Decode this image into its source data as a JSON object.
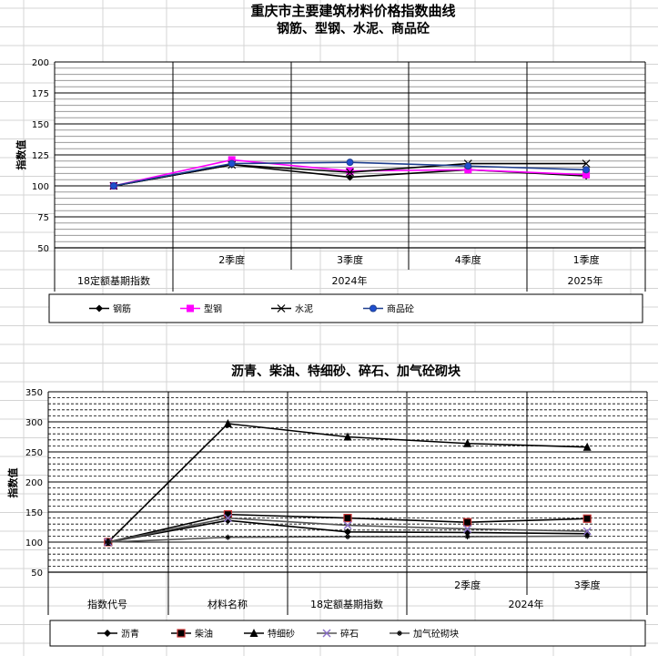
{
  "chart_data": [
    {
      "type": "line",
      "title": "重庆市主要建筑材料价格指数曲线",
      "subtitle": "钢筋、型钢、水泥、商品砼",
      "ylabel": "指数值",
      "ylim": [
        50,
        200
      ],
      "yticks": [
        50,
        75,
        100,
        125,
        150,
        175,
        200
      ],
      "grid": true,
      "legend_position": "bottom",
      "categories": [
        "18定额基期指数",
        "2024年 2季度",
        "2024年 3季度",
        "2024年 4季度",
        "2025年 1季度"
      ],
      "x_labels_top": [
        "",
        "2季度",
        "3季度",
        "4季度",
        "1季度"
      ],
      "x_labels_bottom": [
        "18定额基期指数",
        "2024年",
        "2025年"
      ],
      "series": [
        {
          "name": "钢筋",
          "values": [
            100,
            117,
            107,
            113,
            108
          ],
          "color": "#000000",
          "marker": "diamond"
        },
        {
          "name": "型钢",
          "values": [
            100,
            121,
            112,
            113,
            109
          ],
          "color": "#ff00ff",
          "marker": "square"
        },
        {
          "name": "水泥",
          "values": [
            100,
            117,
            111,
            118,
            118
          ],
          "color": "#000000",
          "marker": "x"
        },
        {
          "name": "商品砼",
          "values": [
            100,
            118,
            119,
            116,
            113
          ],
          "color": "#1f3f8f",
          "marker": "circle"
        }
      ]
    },
    {
      "type": "line",
      "title": "沥青、柴油、特细砂、碎石、加气砼砌块",
      "ylabel": "指数值",
      "ylim": [
        50,
        350
      ],
      "yticks": [
        50,
        100,
        150,
        200,
        250,
        300,
        350
      ],
      "grid": true,
      "legend_position": "bottom",
      "categories": [
        "指数代号",
        "材料名称",
        "18定额基期指数",
        "2024年 2季度",
        "2024年 3季度"
      ],
      "x_labels_top": [
        "",
        "",
        "",
        "2季度",
        "3季度"
      ],
      "x_labels_bottom": [
        "指数代号",
        "材料名称",
        "18定额基期指数",
        "2024年"
      ],
      "series": [
        {
          "name": "沥青",
          "values": [
            100,
            136,
            117,
            116,
            114
          ],
          "color": "#000000",
          "marker": "diamond"
        },
        {
          "name": "柴油",
          "values": [
            100,
            146,
            140,
            133,
            139
          ],
          "color": "#000000",
          "marker": "square-red-border"
        },
        {
          "name": "特细砂",
          "values": [
            100,
            297,
            275,
            264,
            258
          ],
          "color": "#000000",
          "marker": "triangle"
        },
        {
          "name": "碎石",
          "values": [
            100,
            140,
            128,
            122,
            118
          ],
          "color": "#555555",
          "marker": "x-purple"
        },
        {
          "name": "加气砼砌块",
          "values": [
            100,
            108,
            109,
            109,
            110
          ],
          "color": "#555555",
          "marker": "star"
        }
      ]
    }
  ]
}
